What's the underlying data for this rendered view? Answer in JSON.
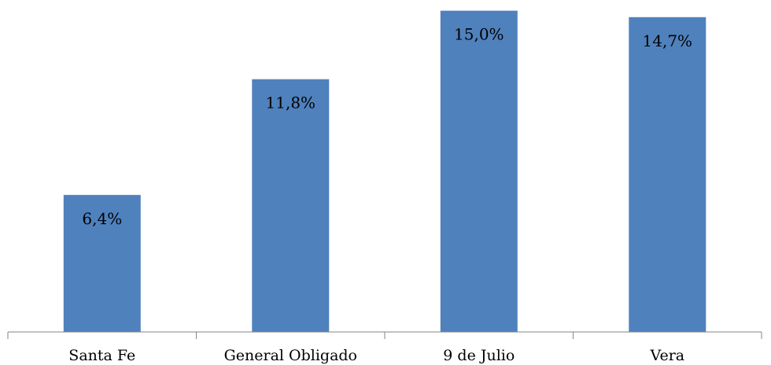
{
  "chart_data": {
    "type": "bar",
    "categories": [
      "Santa Fe",
      "General Obligado",
      "9 de Julio",
      "Vera"
    ],
    "values": [
      6.4,
      11.8,
      15.0,
      14.7
    ],
    "value_labels": [
      "6,4%",
      "11,8%",
      "15,0%",
      "14,7%"
    ],
    "ylim": [
      0,
      15.5
    ],
    "grid": false,
    "legend": "none",
    "bar_color": "#4F81BD",
    "axis_color": "#868686"
  }
}
